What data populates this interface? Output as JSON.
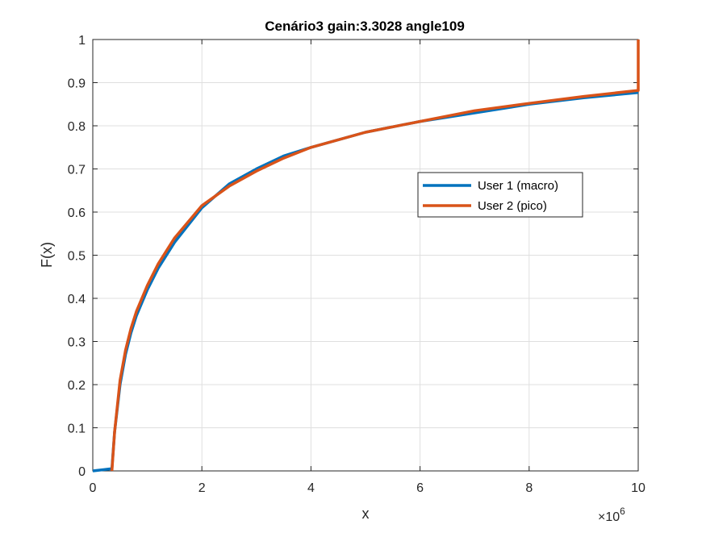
{
  "chart_data": {
    "type": "line",
    "title": "Cenário3 gain:3.3028 angle109",
    "xlabel": "x",
    "ylabel": "F(x)",
    "x_exponent_label": {
      "base": "×10",
      "exp": "6"
    },
    "xlim": [
      0,
      10
    ],
    "ylim": [
      0,
      1
    ],
    "xticks": [
      0,
      2,
      4,
      6,
      8,
      10
    ],
    "xtick_labels": [
      "0",
      "2",
      "4",
      "6",
      "8",
      "10"
    ],
    "yticks": [
      0,
      0.1,
      0.2,
      0.3,
      0.4,
      0.5,
      0.6,
      0.7,
      0.8,
      0.9,
      1
    ],
    "ytick_labels": [
      "0",
      "0.1",
      "0.2",
      "0.3",
      "0.4",
      "0.5",
      "0.6",
      "0.7",
      "0.8",
      "0.9",
      "1"
    ],
    "grid": true,
    "legend_position": "right",
    "series": [
      {
        "name": "User 1 (macro)",
        "color": "#0072BD",
        "x": [
          0,
          0.35,
          0.4,
          0.5,
          0.6,
          0.7,
          0.8,
          1.0,
          1.2,
          1.5,
          2.0,
          2.5,
          3.0,
          3.5,
          4.0,
          5.0,
          6.0,
          7.0,
          8.0,
          9.0,
          10.0
        ],
        "y": [
          0,
          0.005,
          0.09,
          0.2,
          0.27,
          0.32,
          0.36,
          0.42,
          0.47,
          0.53,
          0.61,
          0.665,
          0.7,
          0.73,
          0.75,
          0.785,
          0.81,
          0.83,
          0.85,
          0.865,
          0.877
        ]
      },
      {
        "name": "User 2 (pico)",
        "color": "#D95319",
        "x": [
          0.35,
          0.4,
          0.5,
          0.6,
          0.7,
          0.8,
          1.0,
          1.2,
          1.5,
          2.0,
          2.5,
          3.0,
          3.5,
          4.0,
          5.0,
          6.0,
          7.0,
          8.0,
          9.0,
          10.0,
          10.0
        ],
        "y": [
          0,
          0.09,
          0.21,
          0.28,
          0.33,
          0.37,
          0.43,
          0.48,
          0.54,
          0.615,
          0.66,
          0.695,
          0.725,
          0.75,
          0.785,
          0.81,
          0.835,
          0.852,
          0.868,
          0.882,
          1.0
        ]
      }
    ]
  }
}
